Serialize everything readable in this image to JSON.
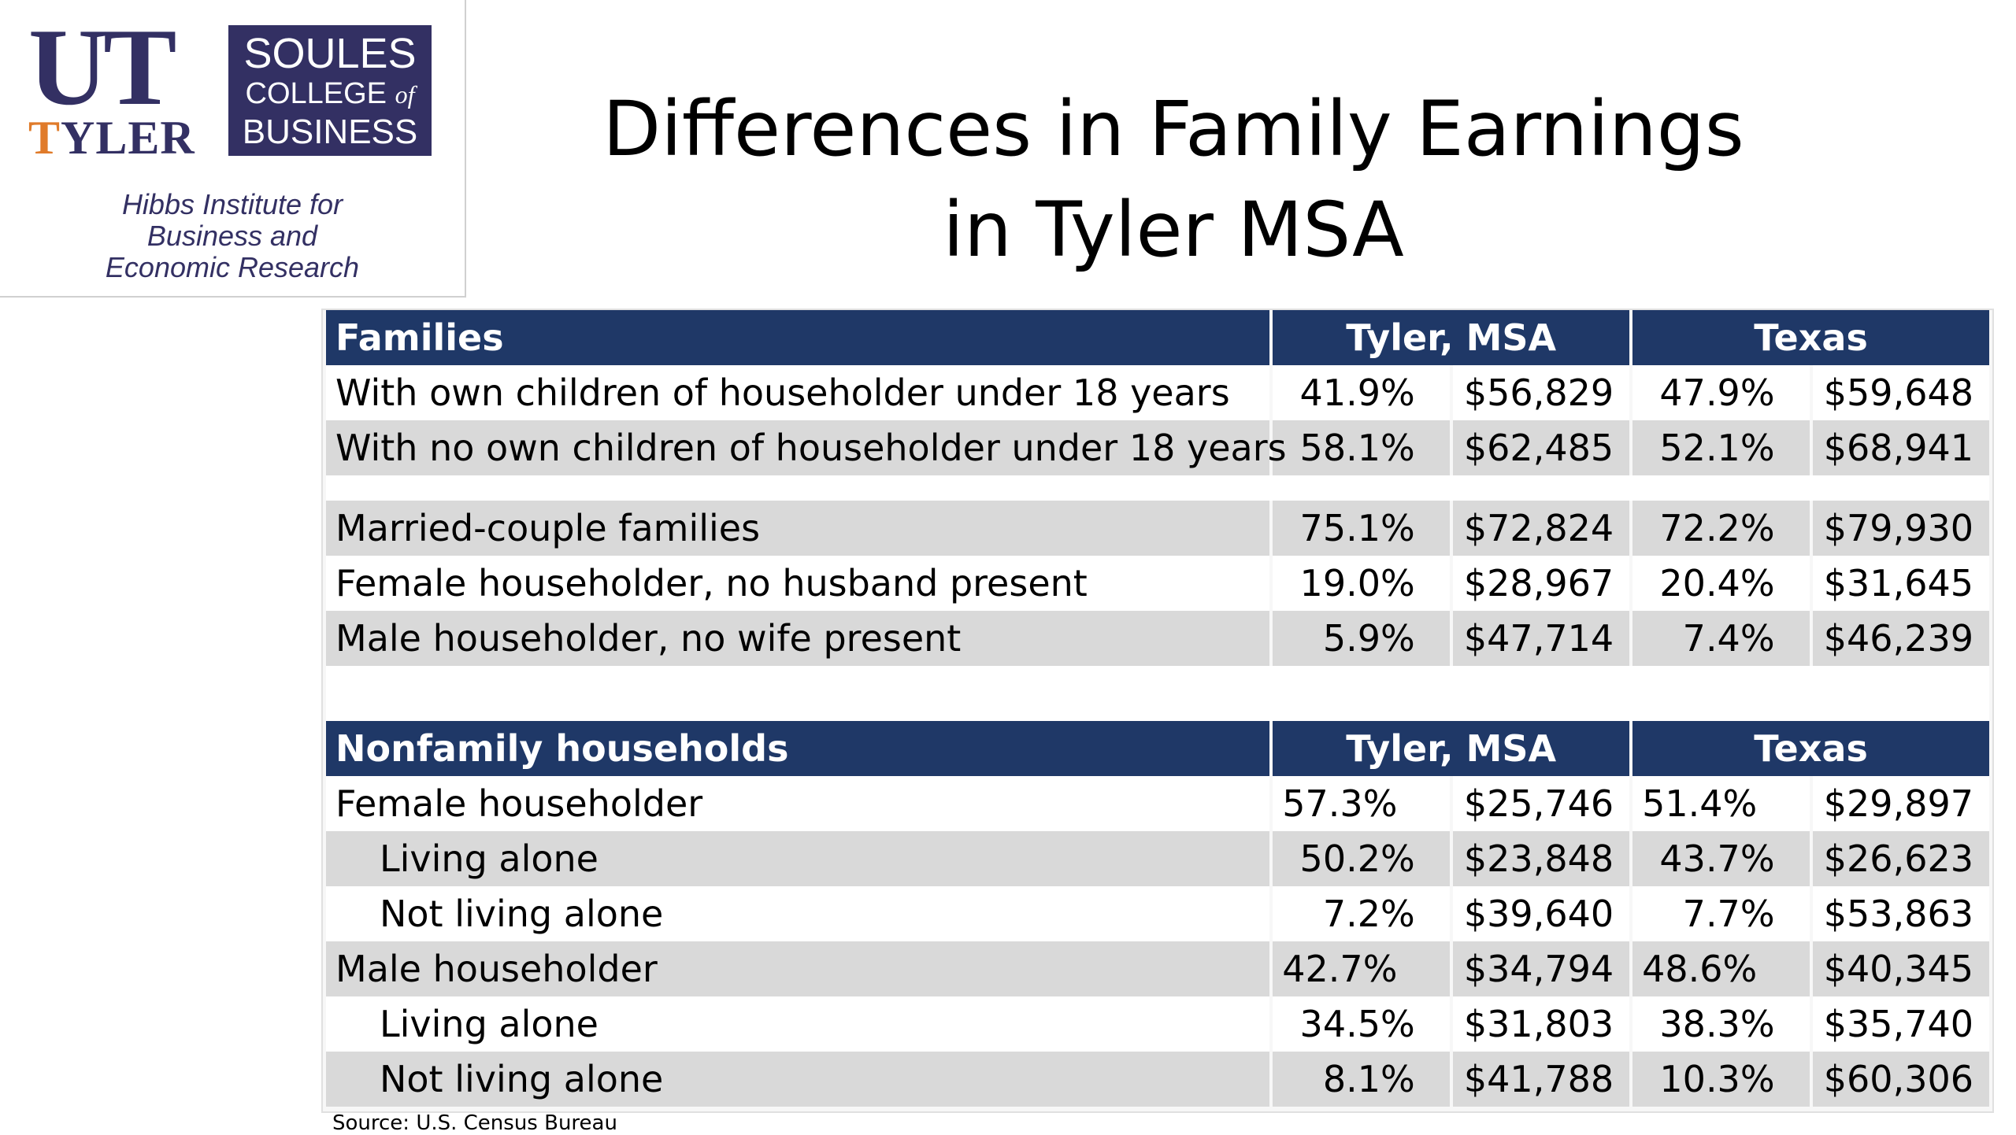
{
  "logo": {
    "ut_letters": "UT",
    "tyler_first": "T",
    "tyler_rest": "YLER",
    "soules_line1": "SOULES",
    "soules_line2_a": "COLLEGE",
    "soules_line2_of": "of",
    "soules_line3": "BUSINESS",
    "hibbs_line1": "Hibbs Institute for",
    "hibbs_line2": "Business and",
    "hibbs_line3": "Economic Research",
    "colors": {
      "navy": "#333063",
      "orange": "#e07b2a"
    }
  },
  "title": {
    "line1": "Differences in Family Earnings",
    "line2": "in Tyler MSA"
  },
  "families_table": {
    "header": {
      "label": "Families",
      "group1": "Tyler, MSA",
      "group2": "Texas"
    },
    "rows_a": [
      {
        "label": "With own children of householder under 18 years",
        "tyler_pct": "41.9%",
        "tyler_income": "$56,829",
        "texas_pct": "47.9%",
        "texas_income": "$59,648"
      },
      {
        "label": "With no own children of householder under 18 years",
        "tyler_pct": "58.1%",
        "tyler_income": "$62,485",
        "texas_pct": "52.1%",
        "texas_income": "$68,941"
      }
    ],
    "rows_b": [
      {
        "label": "Married-couple families",
        "tyler_pct": "75.1%",
        "tyler_income": "$72,824",
        "texas_pct": "72.2%",
        "texas_income": "$79,930"
      },
      {
        "label": "Female householder, no husband present",
        "tyler_pct": "19.0%",
        "tyler_income": "$28,967",
        "texas_pct": "20.4%",
        "texas_income": "$31,645"
      },
      {
        "label": "Male householder, no wife present",
        "tyler_pct": "5.9%",
        "tyler_income": "$47,714",
        "texas_pct": "7.4%",
        "texas_income": "$46,239"
      }
    ]
  },
  "nonfamily_table": {
    "header": {
      "label": "Nonfamily households",
      "group1": "Tyler, MSA",
      "group2": "Texas"
    },
    "rows": [
      {
        "label": "Female householder",
        "tyler_pct": "57.3%",
        "tyler_income": "$25,746",
        "texas_pct": "51.4%",
        "texas_income": "$29,897"
      },
      {
        "label": "Living alone",
        "tyler_pct": "50.2%",
        "tyler_income": "$23,848",
        "texas_pct": "43.7%",
        "texas_income": "$26,623"
      },
      {
        "label": "Not living alone",
        "tyler_pct": "7.2%",
        "tyler_income": "$39,640",
        "texas_pct": "7.7%",
        "texas_income": "$53,863"
      },
      {
        "label": "Male householder",
        "tyler_pct": "42.7%",
        "tyler_income": "$34,794",
        "texas_pct": "48.6%",
        "texas_income": "$40,345"
      },
      {
        "label": "Living alone",
        "tyler_pct": "34.5%",
        "tyler_income": "$31,803",
        "texas_pct": "38.3%",
        "texas_income": "$35,740"
      },
      {
        "label": "Not living alone",
        "tyler_pct": "8.1%",
        "tyler_income": "$41,788",
        "texas_pct": "10.3%",
        "texas_income": "$60,306"
      }
    ]
  },
  "source": "Source: U.S. Census Bureau",
  "colors": {
    "header_bg": "#1f3867",
    "row_gray": "#d9d9d9",
    "row_white": "#ffffff"
  }
}
